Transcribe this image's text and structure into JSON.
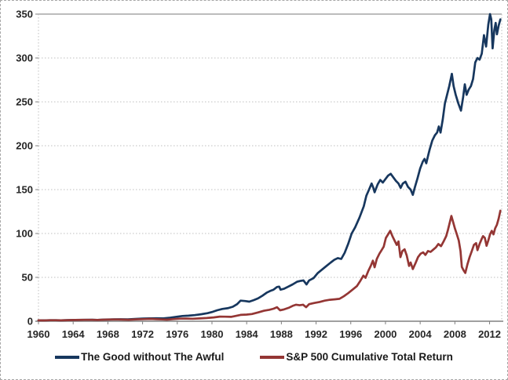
{
  "chart_data": {
    "type": "line",
    "title": "",
    "x_axis": {
      "range": [
        1960,
        2013.4
      ],
      "ticks": [
        1960,
        1964,
        1968,
        1972,
        1976,
        1980,
        1984,
        1988,
        1992,
        1996,
        2000,
        2004,
        2008,
        2012
      ]
    },
    "y_axis": {
      "range": [
        0,
        350
      ],
      "ticks": [
        0,
        50,
        100,
        150,
        200,
        250,
        300,
        350
      ]
    },
    "grid": true,
    "legend_position": "bottom",
    "legend": [
      {
        "label": "The Good without The Awful",
        "color": "#17375E"
      },
      {
        "label": "S&P 500 Cumulative Total Return",
        "color": "#943634"
      }
    ],
    "series": [
      {
        "name": "The Good without The Awful",
        "color": "#17375E",
        "points": [
          [
            1960,
            1
          ],
          [
            1960.7,
            0.95
          ],
          [
            1961.4,
            1.15
          ],
          [
            1962,
            1.15
          ],
          [
            1962.6,
            1
          ],
          [
            1963.3,
            1.25
          ],
          [
            1964.2,
            1.45
          ],
          [
            1965.2,
            1.65
          ],
          [
            1966.2,
            1.7
          ],
          [
            1966.8,
            1.55
          ],
          [
            1967.6,
            1.9
          ],
          [
            1968.6,
            2.15
          ],
          [
            1969.5,
            2.2
          ],
          [
            1970.3,
            2.1
          ],
          [
            1971.1,
            2.6
          ],
          [
            1972,
            3
          ],
          [
            1972.8,
            3.3
          ],
          [
            1973.6,
            3.4
          ],
          [
            1974.4,
            3.3
          ],
          [
            1975.2,
            4
          ],
          [
            1976,
            5.2
          ],
          [
            1976.6,
            6
          ],
          [
            1977.3,
            6.3
          ],
          [
            1978,
            7
          ],
          [
            1978.8,
            8
          ],
          [
            1979.5,
            9.2
          ],
          [
            1980.1,
            10.8
          ],
          [
            1980.6,
            12.5
          ],
          [
            1981.2,
            14
          ],
          [
            1981.8,
            14.8
          ],
          [
            1982.4,
            16.5
          ],
          [
            1982.9,
            19.5
          ],
          [
            1983.3,
            23.5
          ],
          [
            1983.8,
            23
          ],
          [
            1984.3,
            22.3
          ],
          [
            1984.8,
            24
          ],
          [
            1985.3,
            26
          ],
          [
            1985.8,
            29
          ],
          [
            1986.3,
            32.5
          ],
          [
            1986.7,
            34.5
          ],
          [
            1987.1,
            36
          ],
          [
            1987.5,
            39
          ],
          [
            1987.75,
            39.5
          ],
          [
            1987.9,
            36
          ],
          [
            1988.3,
            37
          ],
          [
            1988.8,
            39.5
          ],
          [
            1989.3,
            42
          ],
          [
            1989.8,
            45
          ],
          [
            1990.2,
            46
          ],
          [
            1990.55,
            46.5
          ],
          [
            1990.9,
            42
          ],
          [
            1991.2,
            46.5
          ],
          [
            1991.7,
            49
          ],
          [
            1992.2,
            55
          ],
          [
            1992.7,
            59
          ],
          [
            1993.2,
            63
          ],
          [
            1993.7,
            67
          ],
          [
            1994.1,
            70
          ],
          [
            1994.5,
            72
          ],
          [
            1994.9,
            71
          ],
          [
            1995.3,
            78
          ],
          [
            1995.7,
            88
          ],
          [
            1996.1,
            100
          ],
          [
            1996.5,
            107
          ],
          [
            1997,
            118
          ],
          [
            1997.5,
            131
          ],
          [
            1997.8,
            143
          ],
          [
            1998.1,
            150
          ],
          [
            1998.4,
            157
          ],
          [
            1998.6,
            152
          ],
          [
            1998.75,
            147
          ],
          [
            1999.1,
            156
          ],
          [
            1999.4,
            161
          ],
          [
            1999.7,
            158
          ],
          [
            2000,
            162
          ],
          [
            2000.3,
            166
          ],
          [
            2000.6,
            168
          ],
          [
            2000.9,
            164
          ],
          [
            2001.2,
            160
          ],
          [
            2001.5,
            157
          ],
          [
            2001.75,
            152
          ],
          [
            2002,
            157
          ],
          [
            2002.3,
            159
          ],
          [
            2002.6,
            153
          ],
          [
            2002.9,
            150
          ],
          [
            2003.15,
            144
          ],
          [
            2003.4,
            153
          ],
          [
            2003.7,
            163
          ],
          [
            2004,
            174
          ],
          [
            2004.3,
            182
          ],
          [
            2004.5,
            185
          ],
          [
            2004.7,
            180
          ],
          [
            2004.95,
            190
          ],
          [
            2005.1,
            196
          ],
          [
            2005.4,
            206
          ],
          [
            2005.7,
            212
          ],
          [
            2005.95,
            215
          ],
          [
            2006.15,
            222
          ],
          [
            2006.35,
            215
          ],
          [
            2006.6,
            230
          ],
          [
            2006.85,
            248
          ],
          [
            2007.1,
            258
          ],
          [
            2007.35,
            268
          ],
          [
            2007.65,
            282
          ],
          [
            2007.85,
            268
          ],
          [
            2008.1,
            258
          ],
          [
            2008.4,
            248
          ],
          [
            2008.7,
            240
          ],
          [
            2008.95,
            255
          ],
          [
            2009.15,
            270
          ],
          [
            2009.35,
            258
          ],
          [
            2009.6,
            264
          ],
          [
            2009.85,
            268
          ],
          [
            2010.1,
            276
          ],
          [
            2010.35,
            295
          ],
          [
            2010.6,
            300
          ],
          [
            2010.85,
            298
          ],
          [
            2011.1,
            305
          ],
          [
            2011.35,
            326
          ],
          [
            2011.6,
            313
          ],
          [
            2011.85,
            338
          ],
          [
            2012.05,
            350
          ],
          [
            2012.2,
            344
          ],
          [
            2012.35,
            311
          ],
          [
            2012.55,
            332
          ],
          [
            2012.7,
            340
          ],
          [
            2012.85,
            327
          ],
          [
            2013.05,
            337
          ],
          [
            2013.25,
            344
          ]
        ]
      },
      {
        "name": "S&P 500 Cumulative Total Return",
        "color": "#943634",
        "points": [
          [
            1960,
            1
          ],
          [
            1960.6,
            0.92
          ],
          [
            1961.3,
            1.2
          ],
          [
            1962,
            1.12
          ],
          [
            1962.6,
            0.95
          ],
          [
            1963.4,
            1.25
          ],
          [
            1964.3,
            1.45
          ],
          [
            1965.3,
            1.6
          ],
          [
            1966.2,
            1.65
          ],
          [
            1966.8,
            1.45
          ],
          [
            1967.6,
            1.8
          ],
          [
            1968.8,
            2.05
          ],
          [
            1969.6,
            1.85
          ],
          [
            1970.4,
            1.7
          ],
          [
            1971.2,
            2.1
          ],
          [
            1972.2,
            2.4
          ],
          [
            1972.95,
            2.65
          ],
          [
            1973.6,
            2.3
          ],
          [
            1974.3,
            2.05
          ],
          [
            1974.8,
            1.75
          ],
          [
            1975.5,
            2.45
          ],
          [
            1976.3,
            2.95
          ],
          [
            1977,
            3
          ],
          [
            1977.8,
            2.9
          ],
          [
            1978.6,
            3.2
          ],
          [
            1979.4,
            3.7
          ],
          [
            1980.2,
            4.4
          ],
          [
            1980.9,
            5.3
          ],
          [
            1981.5,
            5.2
          ],
          [
            1982.2,
            5
          ],
          [
            1982.7,
            6
          ],
          [
            1983.3,
            7.2
          ],
          [
            1984,
            7.6
          ],
          [
            1984.6,
            8.2
          ],
          [
            1985.3,
            10
          ],
          [
            1986,
            12
          ],
          [
            1986.6,
            13
          ],
          [
            1987.1,
            14.3
          ],
          [
            1987.5,
            16
          ],
          [
            1987.85,
            12.5
          ],
          [
            1988.3,
            13.5
          ],
          [
            1988.9,
            15.5
          ],
          [
            1989.3,
            17.5
          ],
          [
            1989.7,
            18.8
          ],
          [
            1990.1,
            18.2
          ],
          [
            1990.5,
            18.8
          ],
          [
            1990.85,
            16
          ],
          [
            1991.2,
            19.5
          ],
          [
            1991.8,
            20.8
          ],
          [
            1992.4,
            22
          ],
          [
            1993,
            23.5
          ],
          [
            1993.6,
            24.5
          ],
          [
            1994.2,
            25
          ],
          [
            1994.7,
            25.5
          ],
          [
            1995.2,
            28.5
          ],
          [
            1995.7,
            32
          ],
          [
            1996.2,
            36
          ],
          [
            1996.7,
            40
          ],
          [
            1997.1,
            46
          ],
          [
            1997.45,
            52
          ],
          [
            1997.7,
            49.5
          ],
          [
            1998,
            57
          ],
          [
            1998.3,
            63
          ],
          [
            1998.55,
            69
          ],
          [
            1998.75,
            61.5
          ],
          [
            1999,
            71
          ],
          [
            1999.3,
            77
          ],
          [
            1999.55,
            81
          ],
          [
            1999.8,
            85
          ],
          [
            2000.05,
            95
          ],
          [
            2000.3,
            99
          ],
          [
            2000.55,
            103
          ],
          [
            2000.8,
            97
          ],
          [
            2001.05,
            92
          ],
          [
            2001.3,
            87
          ],
          [
            2001.5,
            91
          ],
          [
            2001.72,
            73
          ],
          [
            2001.95,
            80
          ],
          [
            2002.2,
            82
          ],
          [
            2002.45,
            75
          ],
          [
            2002.72,
            63
          ],
          [
            2002.9,
            67
          ],
          [
            2003.15,
            59.5
          ],
          [
            2003.45,
            66
          ],
          [
            2003.75,
            73
          ],
          [
            2004.05,
            77
          ],
          [
            2004.35,
            78.5
          ],
          [
            2004.6,
            75.5
          ],
          [
            2004.9,
            80
          ],
          [
            2005.2,
            79
          ],
          [
            2005.5,
            81.5
          ],
          [
            2005.8,
            84
          ],
          [
            2006.1,
            88
          ],
          [
            2006.4,
            85.5
          ],
          [
            2006.7,
            91
          ],
          [
            2007,
            97
          ],
          [
            2007.2,
            104
          ],
          [
            2007.4,
            112
          ],
          [
            2007.6,
            120
          ],
          [
            2007.8,
            113
          ],
          [
            2008,
            106
          ],
          [
            2008.2,
            100
          ],
          [
            2008.45,
            92
          ],
          [
            2008.65,
            80
          ],
          [
            2008.8,
            62
          ],
          [
            2009,
            58
          ],
          [
            2009.2,
            55
          ],
          [
            2009.45,
            65
          ],
          [
            2009.7,
            73
          ],
          [
            2009.95,
            80
          ],
          [
            2010.2,
            87
          ],
          [
            2010.45,
            89
          ],
          [
            2010.6,
            81
          ],
          [
            2010.85,
            88
          ],
          [
            2011.1,
            94
          ],
          [
            2011.25,
            97
          ],
          [
            2011.45,
            95
          ],
          [
            2011.65,
            86
          ],
          [
            2011.85,
            92
          ],
          [
            2012.05,
            99
          ],
          [
            2012.25,
            103
          ],
          [
            2012.45,
            99
          ],
          [
            2012.65,
            106
          ],
          [
            2012.85,
            110
          ],
          [
            2013.05,
            117
          ],
          [
            2013.25,
            126
          ]
        ]
      }
    ]
  },
  "styles": {
    "background": "#FFFFFF",
    "gridline_color": "#BFBFBF",
    "axis_color": "#808080",
    "top_border_color": "#A6A6A6",
    "tick_label_color": "#262626",
    "frame_border_color": "#A6A6A6"
  }
}
